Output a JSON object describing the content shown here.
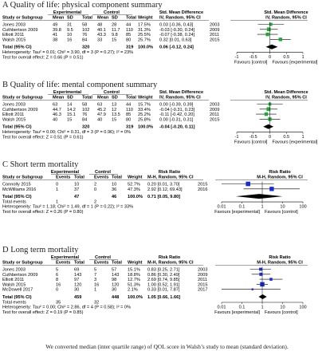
{
  "chart_data": [
    {
      "type": "forest",
      "panel_title": "A Quality of life: physical component summary",
      "header_groups": [
        "Experimental",
        "Control",
        "Std. Mean Difference",
        "Std. Mean Difference"
      ],
      "columns": [
        "Study or Subgroup",
        "Mean",
        "SD",
        "Total",
        "Mean",
        "SD",
        "Total",
        "Weight",
        "IV, Random, 95% CI",
        "IV, Random, 95% CI"
      ],
      "studies": [
        {
          "name": "Jones 2003",
          "values": [
            "49",
            "31",
            "58",
            "48",
            "28",
            "44",
            "17.5%",
            "0.03 [-0.36, 0.43]",
            "2003"
          ],
          "est": 0.03,
          "lo": -0.36,
          "hi": 0.43,
          "weight": 17.5
        },
        {
          "name": "Cuthbertson 2009",
          "values": [
            "39.8",
            "9.5",
            "102",
            "40.1",
            "11.7",
            "110",
            "31.3%",
            "-0.03 [-0.30, 0.24]",
            "2009"
          ],
          "est": -0.03,
          "lo": -0.3,
          "hi": 0.24,
          "weight": 31.3
        },
        {
          "name": "Elliott 2011",
          "values": [
            "41",
            "10",
            "76",
            "43.3",
            "9.8",
            "85",
            "25.5%",
            "-0.07 [-0.38, 0.24]",
            "2011"
          ],
          "est": -0.07,
          "lo": -0.38,
          "hi": 0.24,
          "weight": 25.5
        },
        {
          "name": "Walsh 2015",
          "values": [
            "38",
            "16",
            "84",
            "33",
            "15",
            "80",
            "25.7%",
            "0.32 [0.01, 0.63]",
            "2015"
          ],
          "est": 0.32,
          "lo": 0.01,
          "hi": 0.63,
          "weight": 25.7
        }
      ],
      "total": {
        "label": "Total (95% CI)",
        "n_exp": "320",
        "n_ctl": "319",
        "weight": "100.0%",
        "ci": "0.06 [-0.12, 0.24]",
        "est": 0.06,
        "lo": -0.12,
        "hi": 0.24
      },
      "extra_rows": [],
      "heterogeneity": "Heterogeneity: Tau² = 0.01; Chi² = 3.90, df = 3 (P = 0.27); I² = 23%",
      "overall_effect": "Test for overall effect: Z = 0.66 (P = 0.51)",
      "axis": {
        "scale": "linear",
        "min": -1,
        "max": 1,
        "ticks": [
          -1,
          -0.5,
          0,
          0.5,
          1
        ],
        "tick_labels": [
          "-1",
          "-0.5",
          "0",
          "0.5",
          "1"
        ],
        "favours_left": "Favours [control]",
        "favours_right": "Favours [experimental]"
      },
      "marker_color": "#1fa83a"
    },
    {
      "type": "forest",
      "panel_title": "B Quality of life: mental component summary",
      "header_groups": [
        "Experimental",
        "Control",
        "Std. Mean Difference",
        "Std. Mean Difference"
      ],
      "columns": [
        "Study or Subgroup",
        "Mean",
        "SD",
        "Total",
        "Mean",
        "SD",
        "Total",
        "Weight",
        "IV, Random, 95% CI",
        "IV, Random, 95% CI"
      ],
      "studies": [
        {
          "name": "Jones 2003",
          "values": [
            "63",
            "14",
            "58",
            "63",
            "13",
            "44",
            "15.7%",
            "0.00 [-0.39, 0.39]",
            "2003"
          ],
          "est": 0.0,
          "lo": -0.39,
          "hi": 0.39,
          "weight": 15.7
        },
        {
          "name": "Cuthbertson 2009",
          "values": [
            "44.7",
            "14.2",
            "102",
            "45.2",
            "12",
            "110",
            "33.4%",
            "-0.04 [-0.31, 0.23]",
            "2009"
          ],
          "est": -0.04,
          "lo": -0.31,
          "hi": 0.23,
          "weight": 33.4
        },
        {
          "name": "Elliott 2011",
          "values": [
            "46.3",
            "15.1",
            "76",
            "47.9",
            "13.5",
            "85",
            "25.2%",
            "-0.11 [-0.42, 0.20]",
            "2011"
          ],
          "est": -0.11,
          "lo": -0.42,
          "hi": 0.2,
          "weight": 25.2
        },
        {
          "name": "Walsh 2015",
          "values": [
            "40",
            "15",
            "84",
            "40",
            "15",
            "80",
            "25.8%",
            "0.00 [-0.31, 0.31]",
            "2015"
          ],
          "est": 0.0,
          "lo": -0.31,
          "hi": 0.31,
          "weight": 25.8
        }
      ],
      "total": {
        "label": "Total (95% CI)",
        "n_exp": "320",
        "n_ctl": "319",
        "weight": "100.0%",
        "ci": "-0.04 [-0.20, 0.11]",
        "est": -0.04,
        "lo": -0.2,
        "hi": 0.11
      },
      "extra_rows": [],
      "heterogeneity": "Heterogeneity: Tau² = 0.00; Chi² = 0.31, df = 3 (P = 0.96); I² = 0%",
      "overall_effect": "Test for overall effect: Z = 0.51 (P = 0.61)",
      "axis": {
        "scale": "linear",
        "min": -1,
        "max": 1,
        "ticks": [
          -1,
          -0.5,
          0,
          0.5,
          1
        ],
        "tick_labels": [
          "-1",
          "-0.5",
          "0",
          "0.5",
          "1"
        ],
        "favours_left": "Favours [control]",
        "favours_right": "Favours [experimental]"
      },
      "marker_color": "#1fa83a"
    },
    {
      "type": "forest",
      "panel_title": "C Short term mortality",
      "header_groups": [
        "Experimental",
        "Control",
        "Risk Ratio",
        "Risk Ratio"
      ],
      "columns": [
        "Study or Subgroup",
        "Events",
        "Total",
        "Events",
        "Total",
        "Weight",
        "M-H, Random, 95% CI",
        "M-H, Random, 95% CI"
      ],
      "studies": [
        {
          "name": "Connolly 2015",
          "values": [
            "0",
            "10",
            "2",
            "10",
            "52.7%",
            "0.20 [0.01, 3.70]",
            "2015"
          ],
          "est": 0.2,
          "lo": 0.01,
          "hi": 3.7,
          "weight": 52.7
        },
        {
          "name": "McWilliams 2016",
          "values": [
            "1",
            "37",
            "0",
            "36",
            "47.3%",
            "2.92 [0.12, 69.43]",
            "2016"
          ],
          "est": 2.92,
          "lo": 0.12,
          "hi": 69.43,
          "weight": 47.3
        }
      ],
      "total": {
        "label": "Total (95% CI)",
        "n_exp": "47",
        "n_ctl": "46",
        "weight": "100.0%",
        "ci": "0.71 [0.05, 9.80]",
        "est": 0.71,
        "lo": 0.05,
        "hi": 9.8
      },
      "extra_rows": [
        {
          "label": "Total events",
          "exp": "1",
          "ctl": "2"
        }
      ],
      "heterogeneity": "Heterogeneity: Tau² = 1.18; Chi² = 1.49, df = 1 (P = 0.22); I² = 33%",
      "overall_effect": "Test for overall effect: Z = 0.26 (P = 0.80)",
      "axis": {
        "scale": "log",
        "min": 0.01,
        "max": 100,
        "ticks": [
          0.01,
          0.1,
          1,
          10,
          100
        ],
        "tick_labels": [
          "0.01",
          "0.1",
          "1",
          "10",
          "100"
        ],
        "favours_left": "Favours [experimental]",
        "favours_right": "Favours [control]"
      },
      "marker_color": "#1a2bd6"
    },
    {
      "type": "forest",
      "panel_title": "D Long term mortality",
      "header_groups": [
        "Experimental",
        "Control",
        "Risk Ratio",
        "Risk Ratio"
      ],
      "columns": [
        "Study or Subgroup",
        "Events",
        "Total",
        "Events",
        "Total",
        "Weight",
        "M-H, Random, 95% CI",
        "M-H, Random, 95% CI"
      ],
      "studies": [
        {
          "name": "Jones 2003",
          "values": [
            "5",
            "69",
            "5",
            "57",
            "15.1%",
            "0.83 [0.25, 2.71]",
            "2003"
          ],
          "est": 0.83,
          "lo": 0.25,
          "hi": 2.71,
          "weight": 15.1
        },
        {
          "name": "Cuthbertson 2009",
          "values": [
            "6",
            "143",
            "7",
            "143",
            "18.8%",
            "0.86 [0.30, 2.49]",
            "2009"
          ],
          "est": 0.86,
          "lo": 0.3,
          "hi": 2.49,
          "weight": 18.8
        },
        {
          "name": "Elliott 2011",
          "values": [
            "8",
            "97",
            "3",
            "98",
            "12.7%",
            "2.69 [0.74, 9.85]",
            "2011"
          ],
          "est": 2.69,
          "lo": 0.74,
          "hi": 9.85,
          "weight": 12.7
        },
        {
          "name": "Walsh 2015",
          "values": [
            "16",
            "120",
            "16",
            "120",
            "51.3%",
            "1.00 [0.52, 1.91]",
            "2015"
          ],
          "est": 1.0,
          "lo": 0.52,
          "hi": 1.91,
          "weight": 51.3
        },
        {
          "name": "McDowell 2017",
          "values": [
            "0",
            "30",
            "1",
            "30",
            "2.1%",
            "0.33 [0.01, 7.87]",
            "2017"
          ],
          "est": 0.33,
          "lo": 0.01,
          "hi": 7.87,
          "weight": 2.1
        }
      ],
      "total": {
        "label": "Total (95% CI)",
        "n_exp": "459",
        "n_ctl": "448",
        "weight": "100.0%",
        "ci": "1.05 [0.66, 1.66]",
        "est": 1.05,
        "lo": 0.66,
        "hi": 1.66
      },
      "extra_rows": [
        {
          "label": "Total events",
          "exp": "35",
          "ctl": "32"
        }
      ],
      "heterogeneity": "Heterogeneity: Tau² = 0.00; Chi² = 2.86, df = 4 (P = 0.58); I² = 0%",
      "overall_effect": "Test for overall effect: Z = 0.19 (P = 0.85)",
      "axis": {
        "scale": "log",
        "min": 0.01,
        "max": 100,
        "ticks": [
          0.01,
          0.1,
          1,
          10,
          100
        ],
        "tick_labels": [
          "0.01",
          "0.1",
          "1",
          "10",
          "100"
        ],
        "favours_left": "Favours [experimental]",
        "favours_right": "Favours [control]"
      },
      "marker_color": "#1a2bd6"
    }
  ],
  "footnote": "We converted median (inter quartile range) of QOL score in Walsh’s study to mean (standard deviation)."
}
